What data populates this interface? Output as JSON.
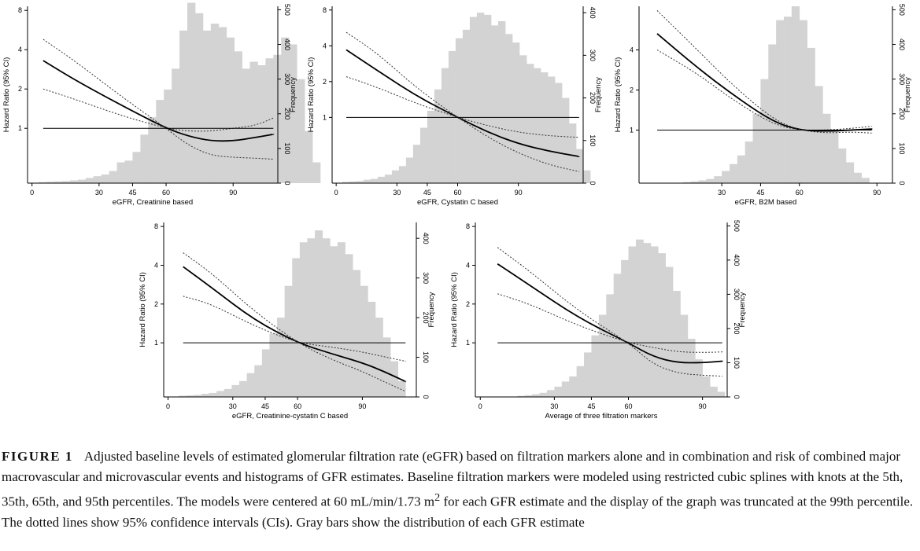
{
  "chart_data": [
    {
      "type": "line",
      "xlabel": "eGFR, Creatinine based",
      "ylabel": "Hazard Ratio (95% CI)",
      "y2label": "Frequency",
      "xticks": [
        0,
        30,
        45,
        60,
        90
      ],
      "yticks": [
        1,
        2,
        4,
        8
      ],
      "y2ticks": [
        0,
        100,
        200,
        300,
        400,
        500
      ],
      "xlim": [
        -2,
        110
      ],
      "ylim": [
        0.38,
        8.6
      ],
      "y2lim": [
        0,
        510
      ],
      "y_scale": "log",
      "bins": {
        "start": 3,
        "width": 3.5,
        "counts": [
          3,
          4,
          5,
          6,
          8,
          10,
          15,
          20,
          25,
          35,
          60,
          65,
          90,
          140,
          190,
          240,
          270,
          330,
          440,
          520,
          490,
          440,
          460,
          450,
          420,
          380,
          330,
          350,
          340,
          360,
          370,
          420,
          400,
          300,
          150,
          60
        ]
      },
      "series": [
        {
          "x": [
            5,
            20,
            40,
            60,
            70,
            80,
            90,
            100,
            108
          ],
          "y": [
            3.3,
            2.3,
            1.5,
            1.0,
            0.87,
            0.8,
            0.8,
            0.85,
            0.9
          ]
        },
        {
          "x": [
            5,
            20,
            40,
            60,
            70,
            80,
            90,
            100,
            108
          ],
          "y": [
            4.8,
            3.2,
            1.75,
            1.0,
            0.74,
            0.62,
            0.6,
            0.59,
            0.58
          ]
        },
        {
          "x": [
            5,
            20,
            40,
            60,
            70,
            80,
            90,
            100,
            108
          ],
          "y": [
            2.0,
            1.65,
            1.25,
            1.0,
            0.95,
            0.95,
            1.0,
            1.05,
            1.2
          ]
        },
        {
          "x": [
            5,
            108
          ],
          "y": [
            1,
            1
          ]
        }
      ]
    },
    {
      "type": "line",
      "xlabel": "eGFR, Cystatin C based",
      "ylabel": "Hazard Ratio (95% CI)",
      "y2label": "Frequency",
      "xticks": [
        0,
        30,
        45,
        60,
        90
      ],
      "yticks": [
        1,
        2,
        4,
        8
      ],
      "y2ticks": [
        0,
        100,
        200,
        300,
        400
      ],
      "xlim": [
        -2,
        122
      ],
      "ylim": [
        0.28,
        8.6
      ],
      "y2lim": [
        0,
        415
      ],
      "y_scale": "log",
      "bins": {
        "start": 3,
        "width": 3.5,
        "counts": [
          3,
          4,
          5,
          8,
          10,
          15,
          20,
          30,
          40,
          60,
          90,
          130,
          170,
          220,
          270,
          310,
          340,
          360,
          390,
          400,
          395,
          370,
          380,
          350,
          330,
          300,
          280,
          270,
          260,
          250,
          235,
          200,
          140,
          80,
          30
        ]
      },
      "series": [
        {
          "x": [
            5,
            20,
            40,
            60,
            75,
            90,
            105,
            120
          ],
          "y": [
            3.7,
            2.5,
            1.5,
            1.0,
            0.75,
            0.6,
            0.52,
            0.47
          ]
        },
        {
          "x": [
            5,
            20,
            40,
            60,
            75,
            90,
            105,
            120
          ],
          "y": [
            5.2,
            3.5,
            1.75,
            1.0,
            0.68,
            0.5,
            0.4,
            0.35
          ]
        },
        {
          "x": [
            5,
            20,
            40,
            60,
            75,
            90,
            105,
            120
          ],
          "y": [
            2.2,
            1.8,
            1.3,
            1.0,
            0.85,
            0.75,
            0.7,
            0.68
          ]
        },
        {
          "x": [
            5,
            120
          ],
          "y": [
            1,
            1
          ]
        }
      ]
    },
    {
      "type": "line",
      "xlabel": "eGFR, B2M based",
      "ylabel": "Hazard Ratio (95% CI)",
      "y2label": "Frequency",
      "xticks": [
        30,
        45,
        60,
        90
      ],
      "yticks": [
        1,
        2,
        4
      ],
      "y2ticks": [
        0,
        100,
        200,
        300,
        400,
        500
      ],
      "xlim": [
        -2,
        96
      ],
      "ylim": [
        0.4,
        8.5
      ],
      "y2lim": [
        0,
        510
      ],
      "y_scale": "log",
      "bins": {
        "start": 15,
        "width": 3,
        "counts": [
          3,
          5,
          8,
          12,
          20,
          35,
          55,
          80,
          120,
          200,
          300,
          400,
          470,
          480,
          510,
          470,
          390,
          280,
          200,
          150,
          100,
          60,
          30,
          15
        ]
      },
      "series": [
        {
          "x": [
            5,
            20,
            35,
            50,
            60,
            70,
            80,
            88
          ],
          "y": [
            5.3,
            3.0,
            1.8,
            1.15,
            1.0,
            0.98,
            1.0,
            1.02
          ]
        },
        {
          "x": [
            5,
            20,
            35,
            50,
            60,
            70,
            80,
            88
          ],
          "y": [
            7.9,
            4.1,
            2.1,
            1.2,
            1.0,
            0.95,
            0.97,
            0.95
          ]
        },
        {
          "x": [
            5,
            20,
            35,
            50,
            60,
            70,
            80,
            88
          ],
          "y": [
            4.0,
            2.7,
            1.65,
            1.1,
            1.0,
            1.0,
            1.03,
            1.07
          ]
        },
        {
          "x": [
            5,
            88
          ],
          "y": [
            1,
            1
          ]
        }
      ]
    },
    {
      "type": "line",
      "xlabel": "eGFR, Creatinine-cystatin C based",
      "ylabel": "Hazard Ratio (95% CI)",
      "y2label": "Frequency",
      "xticks": [
        0,
        30,
        45,
        60,
        90
      ],
      "yticks": [
        1,
        2,
        4,
        8
      ],
      "y2ticks": [
        0,
        100,
        200,
        300,
        400
      ],
      "xlim": [
        -2,
        115
      ],
      "ylim": [
        0.38,
        8.6
      ],
      "y2lim": [
        0,
        440
      ],
      "y_scale": "log",
      "bins": {
        "start": 5,
        "width": 3.5,
        "counts": [
          3,
          4,
          5,
          8,
          10,
          15,
          20,
          30,
          40,
          60,
          80,
          120,
          160,
          200,
          280,
          350,
          390,
          400,
          420,
          400,
          380,
          390,
          360,
          320,
          280,
          240,
          200,
          150,
          90,
          40
        ]
      },
      "series": [
        {
          "x": [
            7,
            20,
            40,
            60,
            75,
            90,
            100,
            110
          ],
          "y": [
            3.9,
            2.7,
            1.5,
            1.0,
            0.83,
            0.7,
            0.6,
            0.5
          ]
        },
        {
          "x": [
            7,
            20,
            40,
            60,
            75,
            90,
            100,
            110
          ],
          "y": [
            5.0,
            3.5,
            1.75,
            1.0,
            0.75,
            0.6,
            0.5,
            0.42
          ]
        },
        {
          "x": [
            7,
            20,
            40,
            60,
            75,
            90,
            100,
            110
          ],
          "y": [
            2.3,
            2.0,
            1.35,
            1.0,
            0.93,
            0.85,
            0.78,
            0.72
          ]
        },
        {
          "x": [
            7,
            110
          ],
          "y": [
            1,
            1
          ]
        }
      ]
    },
    {
      "type": "line",
      "xlabel": "Average of three filtration markers",
      "ylabel": "Hazard Ratio (95% CI)",
      "y2label": "Frequency",
      "xticks": [
        0,
        30,
        45,
        60,
        90
      ],
      "yticks": [
        1,
        2,
        4,
        8
      ],
      "y2ticks": [
        0,
        100,
        200,
        300,
        400,
        500
      ],
      "xlim": [
        -2,
        100
      ],
      "ylim": [
        0.38,
        8.6
      ],
      "y2lim": [
        0,
        510
      ],
      "y_scale": "log",
      "bins": {
        "start": 15,
        "width": 3,
        "counts": [
          3,
          5,
          8,
          12,
          20,
          30,
          45,
          60,
          90,
          130,
          180,
          240,
          300,
          360,
          400,
          440,
          460,
          450,
          440,
          420,
          380,
          310,
          240,
          170,
          110,
          60,
          30,
          15
        ]
      },
      "series": [
        {
          "x": [
            7,
            20,
            40,
            60,
            70,
            80,
            90,
            98
          ],
          "y": [
            4.1,
            2.8,
            1.55,
            1.0,
            0.78,
            0.7,
            0.7,
            0.72
          ]
        },
        {
          "x": [
            7,
            20,
            40,
            60,
            70,
            80,
            90,
            98
          ],
          "y": [
            5.5,
            3.6,
            1.75,
            1.0,
            0.68,
            0.58,
            0.56,
            0.55
          ]
        },
        {
          "x": [
            7,
            20,
            40,
            60,
            70,
            80,
            90,
            98
          ],
          "y": [
            2.4,
            2.0,
            1.35,
            1.0,
            0.92,
            0.85,
            0.84,
            0.85
          ]
        },
        {
          "x": [
            7,
            98
          ],
          "y": [
            1,
            1
          ]
        }
      ]
    }
  ],
  "caption": {
    "label": "FIGURE 1",
    "text": "Adjusted baseline levels of estimated glomerular filtration rate (eGFR) based on filtration markers alone and in combination and risk of combined major macrovascular and microvascular events and histograms of GFR estimates. Baseline filtration markers were modeled using restricted cubic splines with knots at the 5th, 35th, 65th, and 95th percentiles. The models were centered at 60 mL/min/1.73 m",
    "superscript": "2",
    "text_after": " for each GFR estimate and the display of the graph was truncated at the 99th percentile. The dotted lines show 95% confidence intervals (CIs). Gray bars show the distribution of each GFR estimate"
  }
}
